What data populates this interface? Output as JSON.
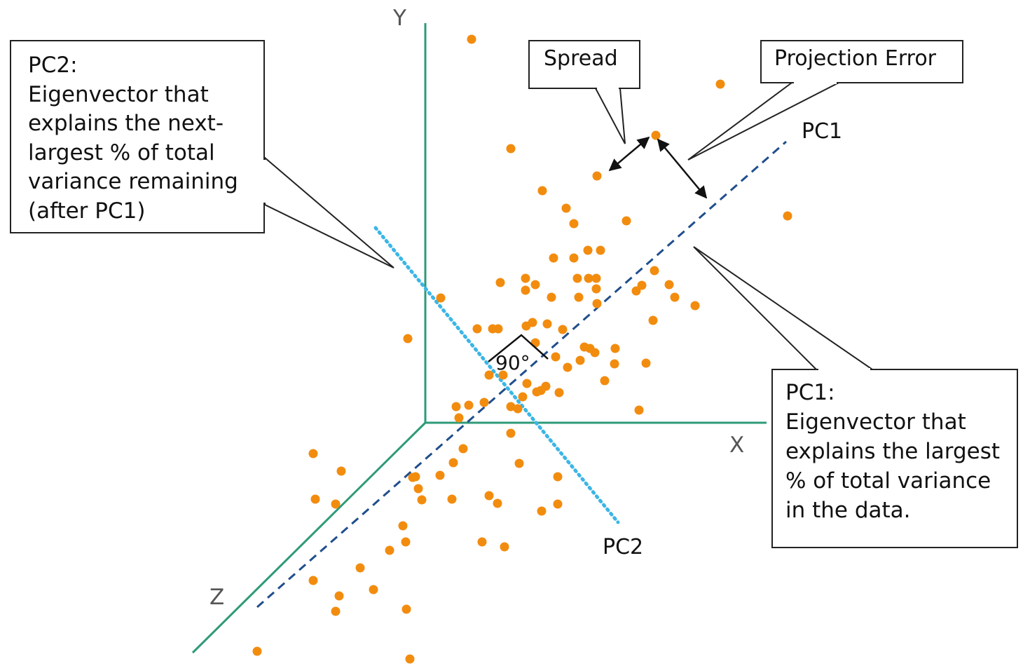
{
  "axes": {
    "y_label": "Y",
    "x_label": "X",
    "z_label": "Z",
    "axis_color": "#2e9a78"
  },
  "lines": {
    "pc1_label": "PC1",
    "pc1_color": "#1f4e8c",
    "pc2_label": "PC2",
    "pc2_color": "#3bb6e6"
  },
  "angle_label": "90°",
  "point_color": "#f28c0f",
  "callouts": {
    "spread": "Spread",
    "projection_error": "Projection Error",
    "pc2_box": {
      "lines": [
        "PC2:",
        "Eigenvector that",
        "explains the next-",
        "largest % of total",
        "variance remaining",
        "(after PC1)"
      ]
    },
    "pc1_box": {
      "lines": [
        "PC1:",
        "Eigenvector that",
        "explains the largest",
        "% of total variance",
        "in the data."
      ]
    }
  }
}
